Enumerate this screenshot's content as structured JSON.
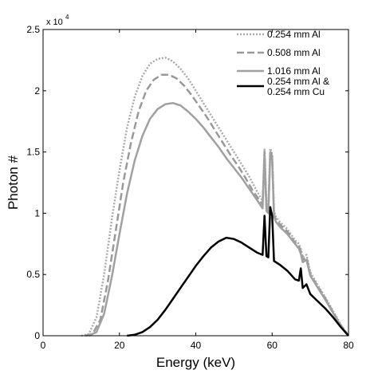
{
  "chart_data": {
    "type": "line",
    "xlabel": "Energy (keV)",
    "ylabel": "Photon #",
    "xlim": [
      0,
      80
    ],
    "ylim": [
      0,
      25000
    ],
    "y_multiplier_label": "x 10",
    "y_multiplier_exp": "4",
    "x_ticks": [
      0,
      20,
      40,
      60,
      80
    ],
    "x_tick_labels": [
      "0",
      "20",
      "40",
      "60",
      "80"
    ],
    "y_ticks": [
      0,
      5000,
      10000,
      15000,
      20000,
      25000
    ],
    "y_tick_labels": [
      "0",
      "0.5",
      "1",
      "1.5",
      "2",
      "2.5"
    ],
    "grid": false,
    "legend_position": "top-right",
    "series": [
      {
        "name": "0.254 mm Al",
        "color": "#aaaaaa",
        "style": "dotted",
        "points": [
          [
            10,
            0
          ],
          [
            12,
            150
          ],
          [
            14,
            1500
          ],
          [
            16,
            5000
          ],
          [
            18,
            9500
          ],
          [
            20,
            13500
          ],
          [
            22,
            17000
          ],
          [
            24,
            19500
          ],
          [
            26,
            21200
          ],
          [
            28,
            22200
          ],
          [
            30,
            22600
          ],
          [
            32,
            22700
          ],
          [
            34,
            22400
          ],
          [
            36,
            21800
          ],
          [
            38,
            21000
          ],
          [
            40,
            20000
          ],
          [
            42,
            19000
          ],
          [
            44,
            18000
          ],
          [
            46,
            17000
          ],
          [
            48,
            16000
          ],
          [
            50,
            15000
          ],
          [
            52,
            14000
          ],
          [
            54,
            13000
          ],
          [
            56,
            11800
          ],
          [
            57.5,
            11000
          ],
          [
            58,
            15200
          ],
          [
            58.5,
            10800
          ],
          [
            59,
            10500
          ],
          [
            59.5,
            15300
          ],
          [
            60,
            14800
          ],
          [
            60.5,
            10200
          ],
          [
            61,
            9700
          ],
          [
            62,
            9300
          ],
          [
            64,
            8700
          ],
          [
            66,
            7800
          ],
          [
            67,
            7500
          ],
          [
            67.5,
            7100
          ],
          [
            68,
            6400
          ],
          [
            69,
            6600
          ],
          [
            70,
            5200
          ],
          [
            72,
            4100
          ],
          [
            74,
            3100
          ],
          [
            76,
            2000
          ],
          [
            78,
            900
          ],
          [
            80,
            0
          ]
        ]
      },
      {
        "name": "0.508 mm Al",
        "color": "#999999",
        "style": "dashed",
        "points": [
          [
            11,
            0
          ],
          [
            13,
            150
          ],
          [
            15,
            1300
          ],
          [
            17,
            4500
          ],
          [
            19,
            8500
          ],
          [
            21,
            12500
          ],
          [
            23,
            15700
          ],
          [
            25,
            18300
          ],
          [
            27,
            20000
          ],
          [
            29,
            20900
          ],
          [
            31,
            21300
          ],
          [
            33,
            21300
          ],
          [
            35,
            21000
          ],
          [
            37,
            20400
          ],
          [
            39,
            19600
          ],
          [
            41,
            18700
          ],
          [
            43,
            17800
          ],
          [
            45,
            16800
          ],
          [
            47,
            15800
          ],
          [
            49,
            14800
          ],
          [
            51,
            13900
          ],
          [
            53,
            12900
          ],
          [
            55,
            11800
          ],
          [
            57.5,
            10700
          ],
          [
            58,
            15000
          ],
          [
            58.5,
            10400
          ],
          [
            59,
            10200
          ],
          [
            59.5,
            15100
          ],
          [
            60,
            14600
          ],
          [
            60.5,
            9900
          ],
          [
            61,
            9500
          ],
          [
            62,
            9100
          ],
          [
            64,
            8500
          ],
          [
            66,
            7600
          ],
          [
            67,
            7300
          ],
          [
            67.5,
            6900
          ],
          [
            68,
            6200
          ],
          [
            69,
            6400
          ],
          [
            70,
            5000
          ],
          [
            72,
            4000
          ],
          [
            74,
            3000
          ],
          [
            76,
            1900
          ],
          [
            78,
            850
          ],
          [
            80,
            0
          ]
        ]
      },
      {
        "name": "1.016 mm Al",
        "color": "#a0a0a0",
        "style": "solid",
        "points": [
          [
            12,
            0
          ],
          [
            14,
            300
          ],
          [
            16,
            1800
          ],
          [
            18,
            4800
          ],
          [
            20,
            8300
          ],
          [
            22,
            11600
          ],
          [
            24,
            14300
          ],
          [
            26,
            16300
          ],
          [
            28,
            17700
          ],
          [
            30,
            18500
          ],
          [
            32,
            18900
          ],
          [
            34,
            19000
          ],
          [
            36,
            18800
          ],
          [
            38,
            18300
          ],
          [
            40,
            17700
          ],
          [
            42,
            17000
          ],
          [
            44,
            16200
          ],
          [
            46,
            15400
          ],
          [
            48,
            14500
          ],
          [
            50,
            13700
          ],
          [
            52,
            12900
          ],
          [
            54,
            12000
          ],
          [
            56,
            11100
          ],
          [
            57.5,
            10400
          ],
          [
            58,
            14800
          ],
          [
            58.5,
            10200
          ],
          [
            59,
            10000
          ],
          [
            59.5,
            14900
          ],
          [
            60,
            14400
          ],
          [
            60.5,
            9700
          ],
          [
            61,
            9300
          ],
          [
            62,
            8900
          ],
          [
            64,
            8300
          ],
          [
            66,
            7500
          ],
          [
            67,
            7100
          ],
          [
            67.5,
            6700
          ],
          [
            68,
            6000
          ],
          [
            69,
            6200
          ],
          [
            70,
            4900
          ],
          [
            72,
            3900
          ],
          [
            74,
            2900
          ],
          [
            76,
            1850
          ],
          [
            78,
            800
          ],
          [
            80,
            0
          ]
        ]
      },
      {
        "name": "0.254 mm Al & 0.254 mm Cu",
        "color": "#000000",
        "style": "solid",
        "points": [
          [
            22,
            0
          ],
          [
            24,
            80
          ],
          [
            26,
            300
          ],
          [
            28,
            700
          ],
          [
            30,
            1300
          ],
          [
            32,
            2100
          ],
          [
            34,
            3000
          ],
          [
            36,
            3900
          ],
          [
            38,
            4800
          ],
          [
            40,
            5700
          ],
          [
            42,
            6500
          ],
          [
            44,
            7200
          ],
          [
            46,
            7700
          ],
          [
            48,
            8000
          ],
          [
            50,
            7900
          ],
          [
            52,
            7600
          ],
          [
            54,
            7200
          ],
          [
            56,
            6800
          ],
          [
            57.5,
            6600
          ],
          [
            58,
            9800
          ],
          [
            58.5,
            6500
          ],
          [
            59,
            6400
          ],
          [
            59.5,
            10500
          ],
          [
            60,
            9800
          ],
          [
            60.5,
            6100
          ],
          [
            61,
            6000
          ],
          [
            62,
            5800
          ],
          [
            64,
            5300
          ],
          [
            66,
            4600
          ],
          [
            67,
            4500
          ],
          [
            67.5,
            5500
          ],
          [
            68,
            3900
          ],
          [
            69,
            4200
          ],
          [
            70,
            3400
          ],
          [
            72,
            2800
          ],
          [
            74,
            2200
          ],
          [
            76,
            1500
          ],
          [
            78,
            700
          ],
          [
            80,
            0
          ]
        ]
      }
    ]
  }
}
